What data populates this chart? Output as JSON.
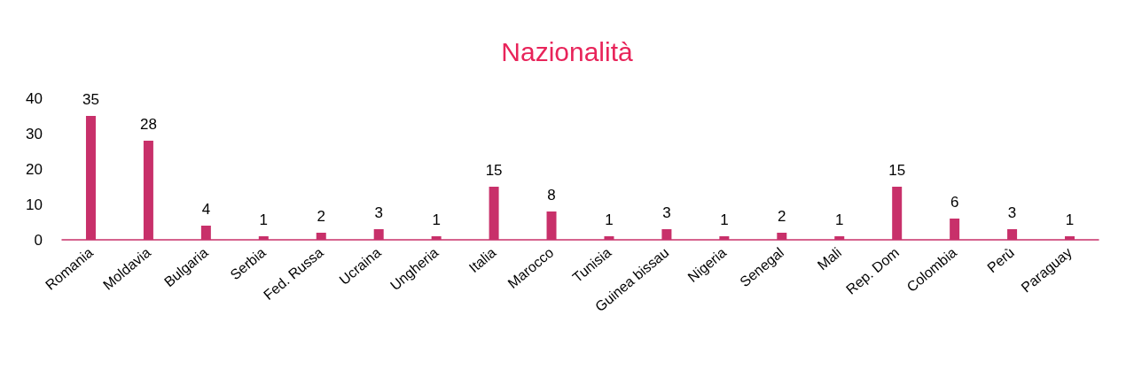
{
  "chart_data": {
    "type": "bar",
    "title": "Nazionalità",
    "categories": [
      "Romania",
      "Moldavia",
      "Bulgaria",
      "Serbia",
      "Fed. Russa",
      "Ucraina",
      "Ungheria",
      "Italia",
      "Marocco",
      "Tunisia",
      "Guinea bissau",
      "Nigeria",
      "Senegal",
      "Mali",
      "Rep. Dom",
      "Colombia",
      "Perù",
      "Paraguay"
    ],
    "values": [
      35,
      28,
      4,
      1,
      2,
      3,
      1,
      15,
      8,
      1,
      3,
      1,
      2,
      1,
      15,
      6,
      3,
      1
    ],
    "color": "#c8306a",
    "ylim": [
      0,
      40
    ],
    "yticks": [
      0,
      10,
      20,
      30,
      40
    ],
    "grid": false,
    "data_labels": true
  }
}
